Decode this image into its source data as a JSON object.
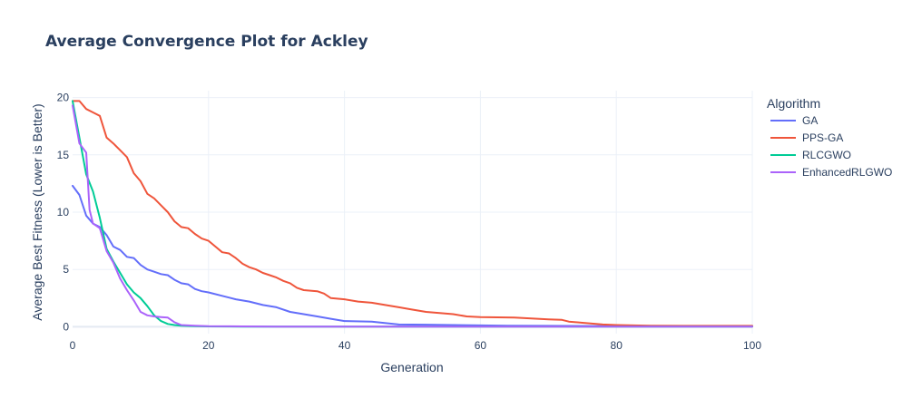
{
  "chart_data": {
    "type": "line",
    "title": "Average Convergence Plot for Ackley",
    "xlabel": "Generation",
    "ylabel": "Average Best Fitness (Lower is Better)",
    "xlim": [
      0,
      100
    ],
    "ylim": [
      -0.6,
      20.6
    ],
    "xticks": [
      0,
      20,
      40,
      60,
      80,
      100
    ],
    "yticks": [
      0,
      5,
      10,
      15,
      20
    ],
    "grid": true,
    "legend": {
      "title": "Algorithm",
      "placement": "right"
    },
    "series": [
      {
        "name": "GA",
        "color": "#636efa",
        "x": [
          0,
          1,
          2,
          3,
          4,
          5,
          6,
          7,
          8,
          9,
          10,
          11,
          12,
          13,
          14,
          15,
          16,
          17,
          18,
          19,
          20,
          22,
          24,
          26,
          28,
          30,
          32,
          34,
          36,
          38,
          40,
          44,
          48,
          52,
          56,
          60,
          64,
          70,
          80,
          90,
          100
        ],
        "y": [
          12.3,
          11.5,
          9.7,
          9.0,
          8.7,
          8.0,
          7.0,
          6.7,
          6.1,
          6.0,
          5.4,
          5.0,
          4.8,
          4.6,
          4.5,
          4.1,
          3.8,
          3.7,
          3.3,
          3.1,
          3.0,
          2.7,
          2.4,
          2.2,
          1.9,
          1.7,
          1.3,
          1.1,
          0.9,
          0.7,
          0.5,
          0.45,
          0.2,
          0.18,
          0.15,
          0.12,
          0.1,
          0.08,
          0.06,
          0.05,
          0.05
        ]
      },
      {
        "name": "PPS-GA",
        "color": "#ef553b",
        "x": [
          0,
          1,
          2,
          3,
          4,
          5,
          6,
          7,
          8,
          9,
          10,
          11,
          12,
          13,
          14,
          15,
          16,
          17,
          18,
          19,
          20,
          21,
          22,
          23,
          24,
          25,
          26,
          27,
          28,
          29,
          30,
          31,
          32,
          33,
          34,
          35,
          36,
          37,
          38,
          40,
          42,
          44,
          46,
          48,
          50,
          52,
          54,
          56,
          58,
          60,
          65,
          70,
          72,
          73,
          75,
          78,
          80,
          85,
          90,
          100
        ],
        "y": [
          19.7,
          19.7,
          19.0,
          18.7,
          18.4,
          16.5,
          16.0,
          15.4,
          14.8,
          13.4,
          12.7,
          11.6,
          11.2,
          10.6,
          10.0,
          9.2,
          8.7,
          8.6,
          8.1,
          7.7,
          7.5,
          7.0,
          6.5,
          6.4,
          6.0,
          5.5,
          5.2,
          5.0,
          4.7,
          4.5,
          4.3,
          4.0,
          3.8,
          3.4,
          3.2,
          3.15,
          3.1,
          2.9,
          2.5,
          2.4,
          2.2,
          2.1,
          1.9,
          1.7,
          1.5,
          1.3,
          1.2,
          1.1,
          0.9,
          0.85,
          0.8,
          0.65,
          0.6,
          0.45,
          0.35,
          0.2,
          0.15,
          0.1,
          0.08,
          0.08
        ]
      },
      {
        "name": "RLCGWO",
        "color": "#00cc96",
        "x": [
          0,
          1,
          2,
          3,
          4,
          5,
          6,
          7,
          8,
          9,
          10,
          11,
          12,
          13,
          14,
          15,
          16,
          17,
          18,
          20,
          25,
          30,
          40,
          60,
          80,
          100
        ],
        "y": [
          19.7,
          16.5,
          13.3,
          11.8,
          9.5,
          6.8,
          5.7,
          4.7,
          3.7,
          3.0,
          2.5,
          1.8,
          1.0,
          0.5,
          0.25,
          0.15,
          0.1,
          0.07,
          0.05,
          0.03,
          0.02,
          0.01,
          0.01,
          0.01,
          0.01,
          0.01
        ]
      },
      {
        "name": "EnhancedRLGWO",
        "color": "#ab63fa",
        "x": [
          0,
          1,
          2,
          2.5,
          3,
          4,
          5,
          6,
          7,
          8,
          9,
          10,
          11,
          12,
          13,
          14,
          15,
          16,
          18,
          20,
          25,
          30,
          40,
          60,
          80,
          100
        ],
        "y": [
          19.3,
          16.0,
          15.2,
          10.2,
          9.0,
          8.6,
          6.6,
          5.6,
          4.2,
          3.2,
          2.3,
          1.3,
          1.0,
          0.9,
          0.85,
          0.8,
          0.4,
          0.15,
          0.1,
          0.05,
          0.03,
          0.02,
          0.01,
          0.01,
          0.01,
          0.01
        ]
      }
    ]
  }
}
